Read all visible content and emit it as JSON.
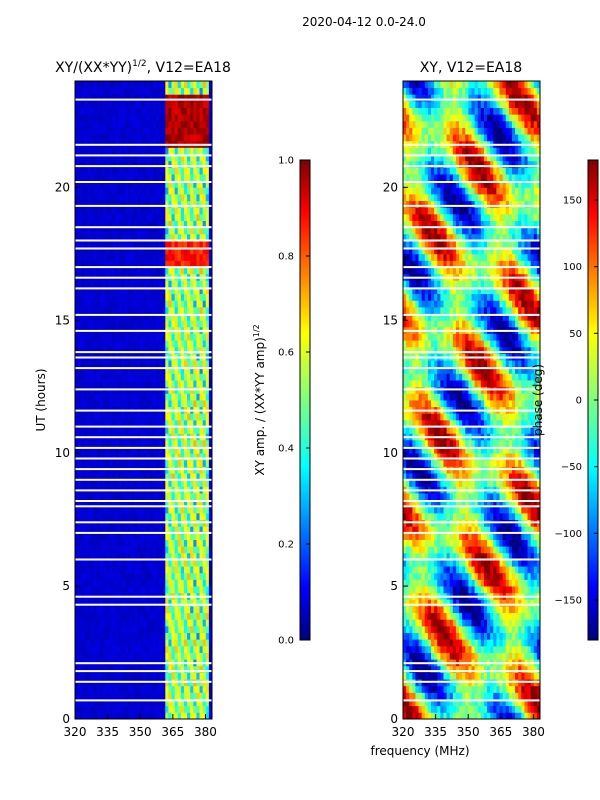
{
  "figure": {
    "suptitle": "2020-04-12 0.0-24.0",
    "xlabel_shared": "frequency (MHz)"
  },
  "chart_data": [
    {
      "type": "heatmap",
      "title_main": "XY/(XX*YY)",
      "title_sup": "1/2",
      "title_tail": ", V12=EA18",
      "xlabel": "",
      "ylabel": "UT (hours)",
      "xlim": [
        320,
        383
      ],
      "ylim": [
        0,
        24
      ],
      "xticks": [
        320,
        335,
        350,
        365,
        380
      ],
      "yticks": [
        0,
        5,
        10,
        15,
        20
      ],
      "colorbar": {
        "label_main": "XY amp. / (XX*YY amp)",
        "label_sup": "1/2",
        "range": [
          0.0,
          1.0
        ],
        "ticks": [
          "0.0",
          "0.2",
          "0.4",
          "0.6",
          "0.8",
          "1.0"
        ],
        "colormap": "jet"
      },
      "description_of_pattern": "mostly low amplitude below 360 MHz, high-amplitude channels between 360 and 380 MHz"
    },
    {
      "type": "heatmap",
      "title": "XY, V12=EA18",
      "xlabel": "",
      "ylabel": "",
      "xlim": [
        320,
        383
      ],
      "ylim": [
        0,
        24
      ],
      "xticks": [
        320,
        335,
        350,
        365,
        380
      ],
      "yticks": [
        0,
        5,
        10,
        15,
        20
      ],
      "colorbar": {
        "label": "phase (deg)",
        "range": [
          -180,
          180
        ],
        "ticks": [
          "150",
          "100",
          "50",
          "0",
          "−50",
          "−100",
          "−150"
        ],
        "colormap": "jet"
      }
    }
  ],
  "colors": {
    "jet_stops": [
      "#00007f",
      "#0000ff",
      "#007fff",
      "#00ffff",
      "#7fff7f",
      "#ffff00",
      "#ff7f00",
      "#ff0000",
      "#7f0000"
    ]
  }
}
